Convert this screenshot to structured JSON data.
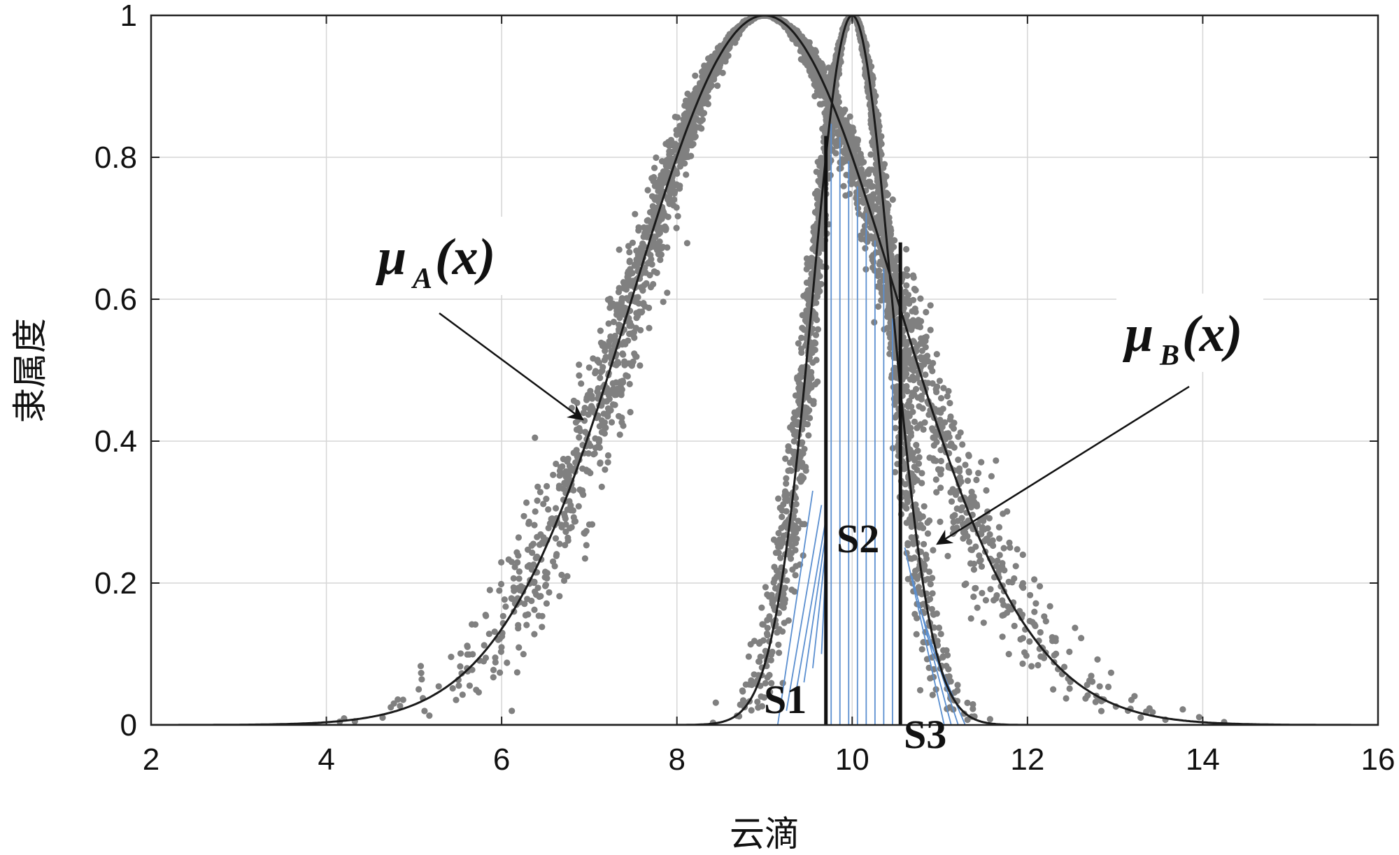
{
  "chart_data": {
    "type": "scatter",
    "title": "",
    "xlabel": "云滴",
    "ylabel": "隶属度",
    "xlim": [
      2,
      16
    ],
    "ylim": [
      0,
      1
    ],
    "x_ticks": [
      "2",
      "4",
      "6",
      "8",
      "10",
      "12",
      "14",
      "16"
    ],
    "y_ticks": [
      "0",
      "0.2",
      "0.4",
      "0.6",
      "0.8",
      "1"
    ],
    "grid": true,
    "curves": [
      {
        "label_main": "μ",
        "label_sub": "A",
        "label_tail": "(x)",
        "Ex": 9.0,
        "En": 1.5,
        "color": "#1a1a1a"
      },
      {
        "label_main": "μ",
        "label_sub": "B",
        "label_tail": "(x)",
        "Ex": 10.0,
        "En": 0.45,
        "color": "#1a1a1a"
      }
    ],
    "cloud_drops": [
      {
        "Ex": 9.0,
        "En": 1.5,
        "He": 0.12,
        "count": 3200,
        "color": "#808080"
      },
      {
        "Ex": 10.0,
        "En": 0.45,
        "He": 0.045,
        "count": 2400,
        "color": "#808080"
      }
    ],
    "boundaries": [
      9.7,
      10.55
    ],
    "regions": [
      "S1",
      "S2",
      "S3"
    ],
    "hatch_color": "#5b8fd0"
  }
}
